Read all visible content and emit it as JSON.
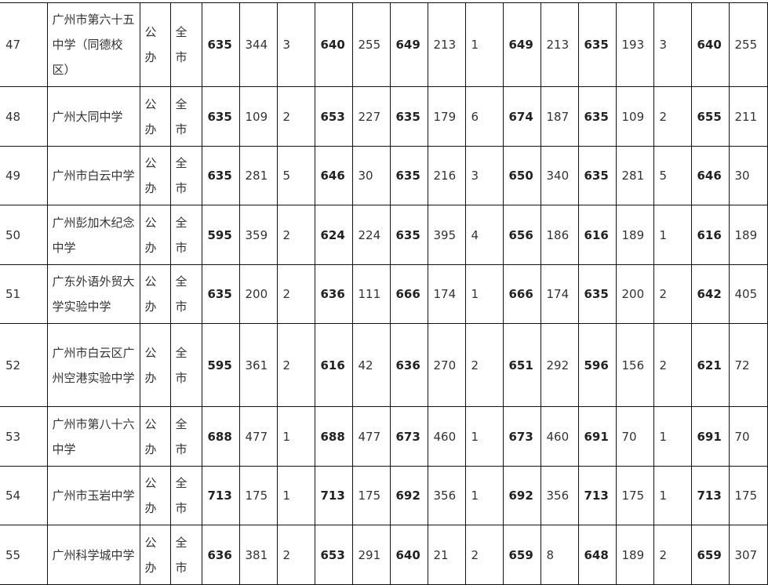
{
  "rows": [
    {
      "no": "47",
      "name": "广州市第六十五中学（同德校区）",
      "type": "公办",
      "scope": "全市",
      "v": [
        "635",
        "344",
        "3",
        "640",
        "255",
        "649",
        "213",
        "1",
        "649",
        "213",
        "635",
        "193",
        "3",
        "640",
        "255"
      ]
    },
    {
      "no": "48",
      "name": "广州大同中学",
      "type": "公办",
      "scope": "全市",
      "v": [
        "635",
        "109",
        "2",
        "653",
        "227",
        "635",
        "179",
        "6",
        "674",
        "187",
        "635",
        "109",
        "2",
        "655",
        "211"
      ]
    },
    {
      "no": "49",
      "name": "广州市白云中学",
      "type": "公办",
      "scope": "全市",
      "v": [
        "635",
        "281",
        "5",
        "646",
        "30",
        "635",
        "216",
        "3",
        "650",
        "340",
        "635",
        "281",
        "5",
        "646",
        "30"
      ]
    },
    {
      "no": "50",
      "name": "广州彭加木纪念中学",
      "type": "公办",
      "scope": "全市",
      "v": [
        "595",
        "359",
        "2",
        "624",
        "224",
        "635",
        "395",
        "4",
        "656",
        "186",
        "616",
        "189",
        "1",
        "616",
        "189"
      ]
    },
    {
      "no": "51",
      "name": "广东外语外贸大学实验中学",
      "type": "公办",
      "scope": "全市",
      "v": [
        "635",
        "200",
        "2",
        "636",
        "111",
        "666",
        "174",
        "1",
        "666",
        "174",
        "635",
        "200",
        "2",
        "642",
        "405"
      ]
    },
    {
      "no": "52",
      "name": "广州市白云区广州空港实验中学",
      "type": "公办",
      "scope": "全市",
      "v": [
        "595",
        "361",
        "2",
        "616",
        "42",
        "636",
        "270",
        "2",
        "651",
        "292",
        "596",
        "156",
        "2",
        "621",
        "72"
      ]
    },
    {
      "no": "53",
      "name": "广州市第八十六中学",
      "type": "公办",
      "scope": "全市",
      "v": [
        "688",
        "477",
        "1",
        "688",
        "477",
        "673",
        "460",
        "1",
        "673",
        "460",
        "691",
        "70",
        "1",
        "691",
        "70"
      ]
    },
    {
      "no": "54",
      "name": "广州市玉岩中学",
      "type": "公办",
      "scope": "全市",
      "v": [
        "713",
        "175",
        "1",
        "713",
        "175",
        "692",
        "356",
        "1",
        "692",
        "356",
        "713",
        "175",
        "1",
        "713",
        "175"
      ]
    },
    {
      "no": "55",
      "name": "广州科学城中学",
      "type": "公办",
      "scope": "全市",
      "v": [
        "636",
        "381",
        "2",
        "653",
        "291",
        "640",
        "21",
        "2",
        "659",
        "8",
        "648",
        "189",
        "2",
        "659",
        "307"
      ]
    }
  ]
}
